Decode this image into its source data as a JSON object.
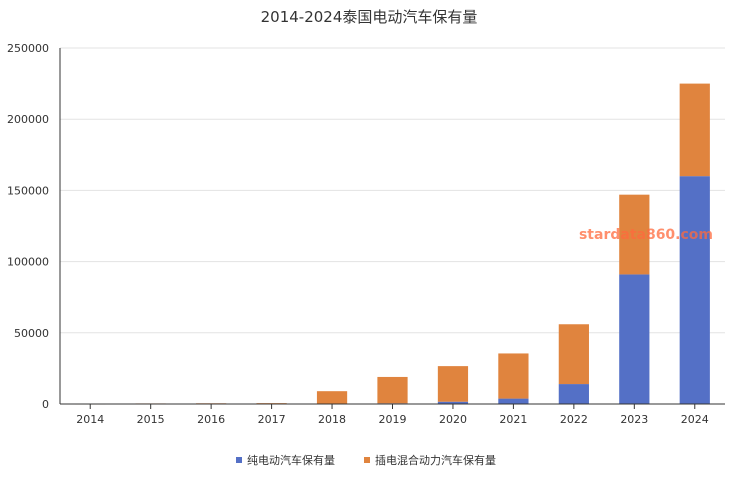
{
  "title": "2014-2024泰国电动汽车保有量",
  "watermark": "stardata860.com",
  "chart_data": {
    "type": "bar",
    "stacked": true,
    "title": "2014-2024泰国电动汽车保有量",
    "xlabel": "",
    "ylabel": "",
    "categories": [
      "2014",
      "2015",
      "2016",
      "2017",
      "2018",
      "2019",
      "2020",
      "2021",
      "2022",
      "2023",
      "2024"
    ],
    "ylim": [
      0,
      250000
    ],
    "yticks": [
      0,
      50000,
      100000,
      150000,
      200000,
      250000
    ],
    "grid": true,
    "legend_position": "bottom",
    "series": [
      {
        "name": "纯电动汽车保有量",
        "color": "#5470c6",
        "values": [
          0,
          0,
          0,
          0,
          300,
          500,
          1600,
          3800,
          14000,
          91000,
          160000
        ]
      },
      {
        "name": "插电混合动力汽车保有量",
        "color": "#e0843e",
        "values": [
          200,
          400,
          500,
          600,
          8700,
          18500,
          25000,
          31700,
          42000,
          56000,
          65000
        ]
      }
    ]
  }
}
